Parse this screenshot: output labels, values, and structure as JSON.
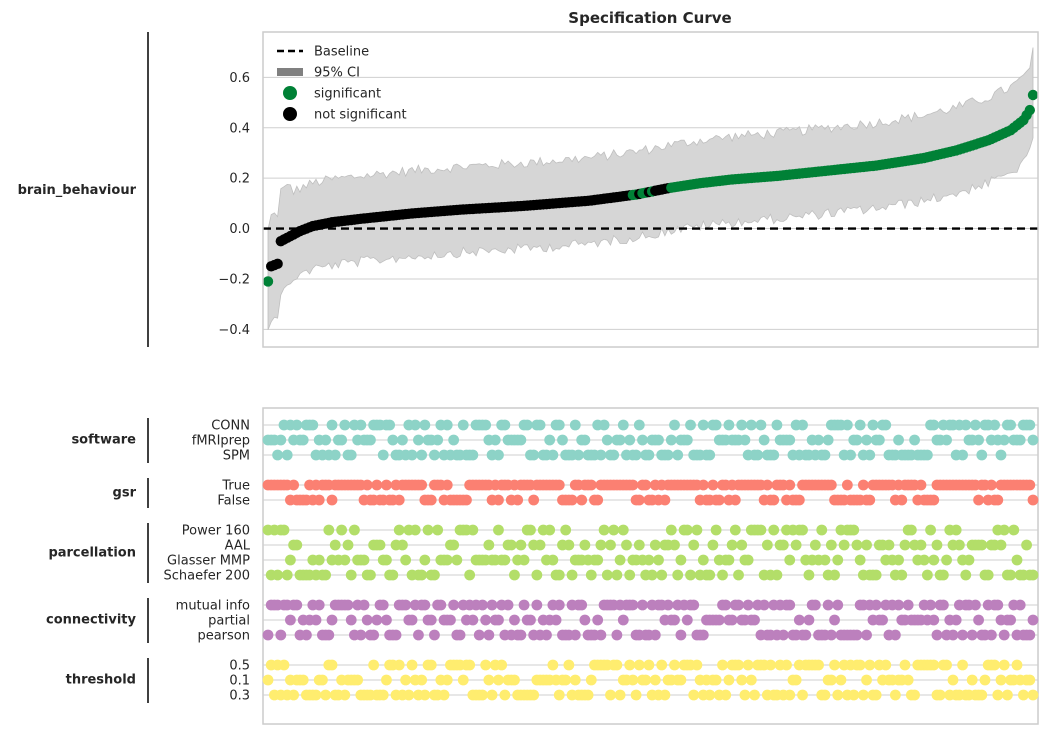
{
  "chart_data": [
    {
      "type": "scatter",
      "title": "Specification Curve",
      "ylabel": "brain_behaviour",
      "ylim": [
        -0.47,
        0.78
      ],
      "yticks": [
        -0.4,
        -0.2,
        0.0,
        0.2,
        0.4,
        0.6
      ],
      "ytick_labels": [
        "−0.4",
        "−0.2",
        "0.0",
        "0.2",
        "0.4",
        "0.6"
      ],
      "grid": true,
      "legend_position": "top-left",
      "legend": {
        "baseline": "Baseline",
        "ci": "95% CI",
        "significant": "significant",
        "not_significant": "not significant"
      },
      "baseline_value": 0.0,
      "n_specs": 240,
      "curve_control_points": [
        [
          0,
          -0.21
        ],
        [
          1,
          -0.15
        ],
        [
          3,
          -0.14
        ],
        [
          4,
          -0.05
        ],
        [
          7,
          -0.03
        ],
        [
          10,
          -0.01
        ],
        [
          14,
          0.01
        ],
        [
          20,
          0.025
        ],
        [
          30,
          0.04
        ],
        [
          45,
          0.06
        ],
        [
          60,
          0.075
        ],
        [
          80,
          0.09
        ],
        [
          100,
          0.11
        ],
        [
          115,
          0.135
        ],
        [
          125,
          0.16
        ],
        [
          135,
          0.18
        ],
        [
          145,
          0.195
        ],
        [
          160,
          0.21
        ],
        [
          175,
          0.23
        ],
        [
          190,
          0.25
        ],
        [
          205,
          0.28
        ],
        [
          215,
          0.31
        ],
        [
          225,
          0.35
        ],
        [
          232,
          0.39
        ],
        [
          236,
          0.43
        ],
        [
          238,
          0.47
        ],
        [
          239,
          0.53
        ]
      ],
      "ci_halfwidth_range": [
        0.15,
        0.19
      ],
      "significance": {
        "significant_low_indices": [
          0
        ],
        "mixed_range": [
          114,
          125
        ],
        "significant_from": 126
      },
      "colors": {
        "significant": "#008136",
        "not_significant": "#000000",
        "ci_fill": "#d6d6d6",
        "grid": "#cfcfcf",
        "baseline": "#000000"
      }
    },
    {
      "type": "scatter",
      "kind": "specification-indicator-panel",
      "groups": [
        {
          "name": "software",
          "color": "#8dd3c7",
          "options": [
            "CONN",
            "fMRIprep",
            "SPM"
          ]
        },
        {
          "name": "gsr",
          "color": "#fb8072",
          "options": [
            "True",
            "False"
          ]
        },
        {
          "name": "parcellation",
          "color": "#b3de69",
          "options": [
            "Power 160",
            "AAL",
            "Glasser MMP",
            "Schaefer 200"
          ]
        },
        {
          "name": "connectivity",
          "color": "#bc80bd",
          "options": [
            "mutual info",
            "partial",
            "pearson"
          ]
        },
        {
          "name": "threshold",
          "color": "#ffed6f",
          "options": [
            "0.5",
            "0.1",
            "0.3"
          ]
        }
      ]
    }
  ]
}
